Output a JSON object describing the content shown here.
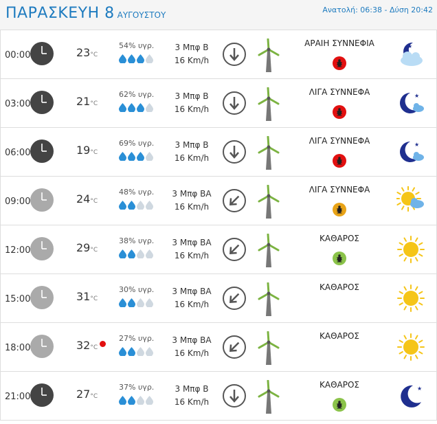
{
  "header": {
    "day": "ΠΑΡΑΣΚΕΥΗ 8",
    "month": "ΑΥΓΟΥΣΤΟΥ",
    "sun_times": "Ανατολή: 06:38  - Δύση 20:42"
  },
  "colors": {
    "accent": "#1e7bbf",
    "hot_dot": "#e21010",
    "bug_red": "#e21010",
    "bug_orange": "#e8a317",
    "bug_green": "#8bc34a",
    "clock_dark": "#444444",
    "clock_light": "#aaaaaa"
  },
  "rows": [
    {
      "time": "00:00",
      "clock": "dark",
      "temp": "23",
      "unit": "°C",
      "hum": "54% υγρ.",
      "drops": 3,
      "wind_b": "3 Μπφ Β",
      "wind_k": "16 Km/h",
      "dir": "N",
      "cond": "ΑΡΑΙΗ ΣΥΝΝΕΦΙΑ",
      "bug": "red",
      "icon": "moon-cloud-icon",
      "hot": false
    },
    {
      "time": "03:00",
      "clock": "dark",
      "temp": "21",
      "unit": "°C",
      "hum": "62% υγρ.",
      "drops": 3,
      "wind_b": "3 Μπφ Β",
      "wind_k": "16 Km/h",
      "dir": "N",
      "cond": "ΛΙΓΑ ΣΥΝΝΕΦΑ",
      "bug": "red",
      "icon": "moon-small-cloud-icon",
      "hot": false
    },
    {
      "time": "06:00",
      "clock": "dark",
      "temp": "19",
      "unit": "°C",
      "hum": "69% υγρ.",
      "drops": 3,
      "wind_b": "3 Μπφ Β",
      "wind_k": "16 Km/h",
      "dir": "N",
      "cond": "ΛΙΓΑ ΣΥΝΝΕΦΑ",
      "bug": "red",
      "icon": "moon-small-cloud-icon",
      "hot": false
    },
    {
      "time": "09:00",
      "clock": "light",
      "temp": "24",
      "unit": "°C",
      "hum": "48% υγρ.",
      "drops": 2,
      "wind_b": "3 Μπφ ΒΑ",
      "wind_k": "16 Km/h",
      "dir": "NE",
      "cond": "ΛΙΓΑ ΣΥΝΝΕΦΑ",
      "bug": "orange",
      "icon": "sun-cloud-icon",
      "hot": false
    },
    {
      "time": "12:00",
      "clock": "light",
      "temp": "29",
      "unit": "°C",
      "hum": "38% υγρ.",
      "drops": 2,
      "wind_b": "3 Μπφ ΒΑ",
      "wind_k": "16 Km/h",
      "dir": "NE",
      "cond": "ΚΑΘΑΡΟΣ",
      "bug": "green",
      "icon": "sun-icon",
      "hot": false
    },
    {
      "time": "15:00",
      "clock": "light",
      "temp": "31",
      "unit": "°C",
      "hum": "30% υγρ.",
      "drops": 2,
      "wind_b": "3 Μπφ ΒΑ",
      "wind_k": "16 Km/h",
      "dir": "NE",
      "cond": "ΚΑΘΑΡΟΣ",
      "bug": "none",
      "icon": "sun-icon",
      "hot": false
    },
    {
      "time": "18:00",
      "clock": "light",
      "temp": "32",
      "unit": "°C",
      "hum": "27% υγρ.",
      "drops": 2,
      "wind_b": "3 Μπφ ΒΑ",
      "wind_k": "16 Km/h",
      "dir": "NE",
      "cond": "ΚΑΘΑΡΟΣ",
      "bug": "none",
      "icon": "sun-icon",
      "hot": true
    },
    {
      "time": "21:00",
      "clock": "dark",
      "temp": "27",
      "unit": "°C",
      "hum": "37% υγρ.",
      "drops": 2,
      "wind_b": "3 Μπφ Β",
      "wind_k": "16 Km/h",
      "dir": "N",
      "cond": "ΚΑΘΑΡΟΣ",
      "bug": "green",
      "icon": "moon-icon",
      "hot": false
    }
  ]
}
